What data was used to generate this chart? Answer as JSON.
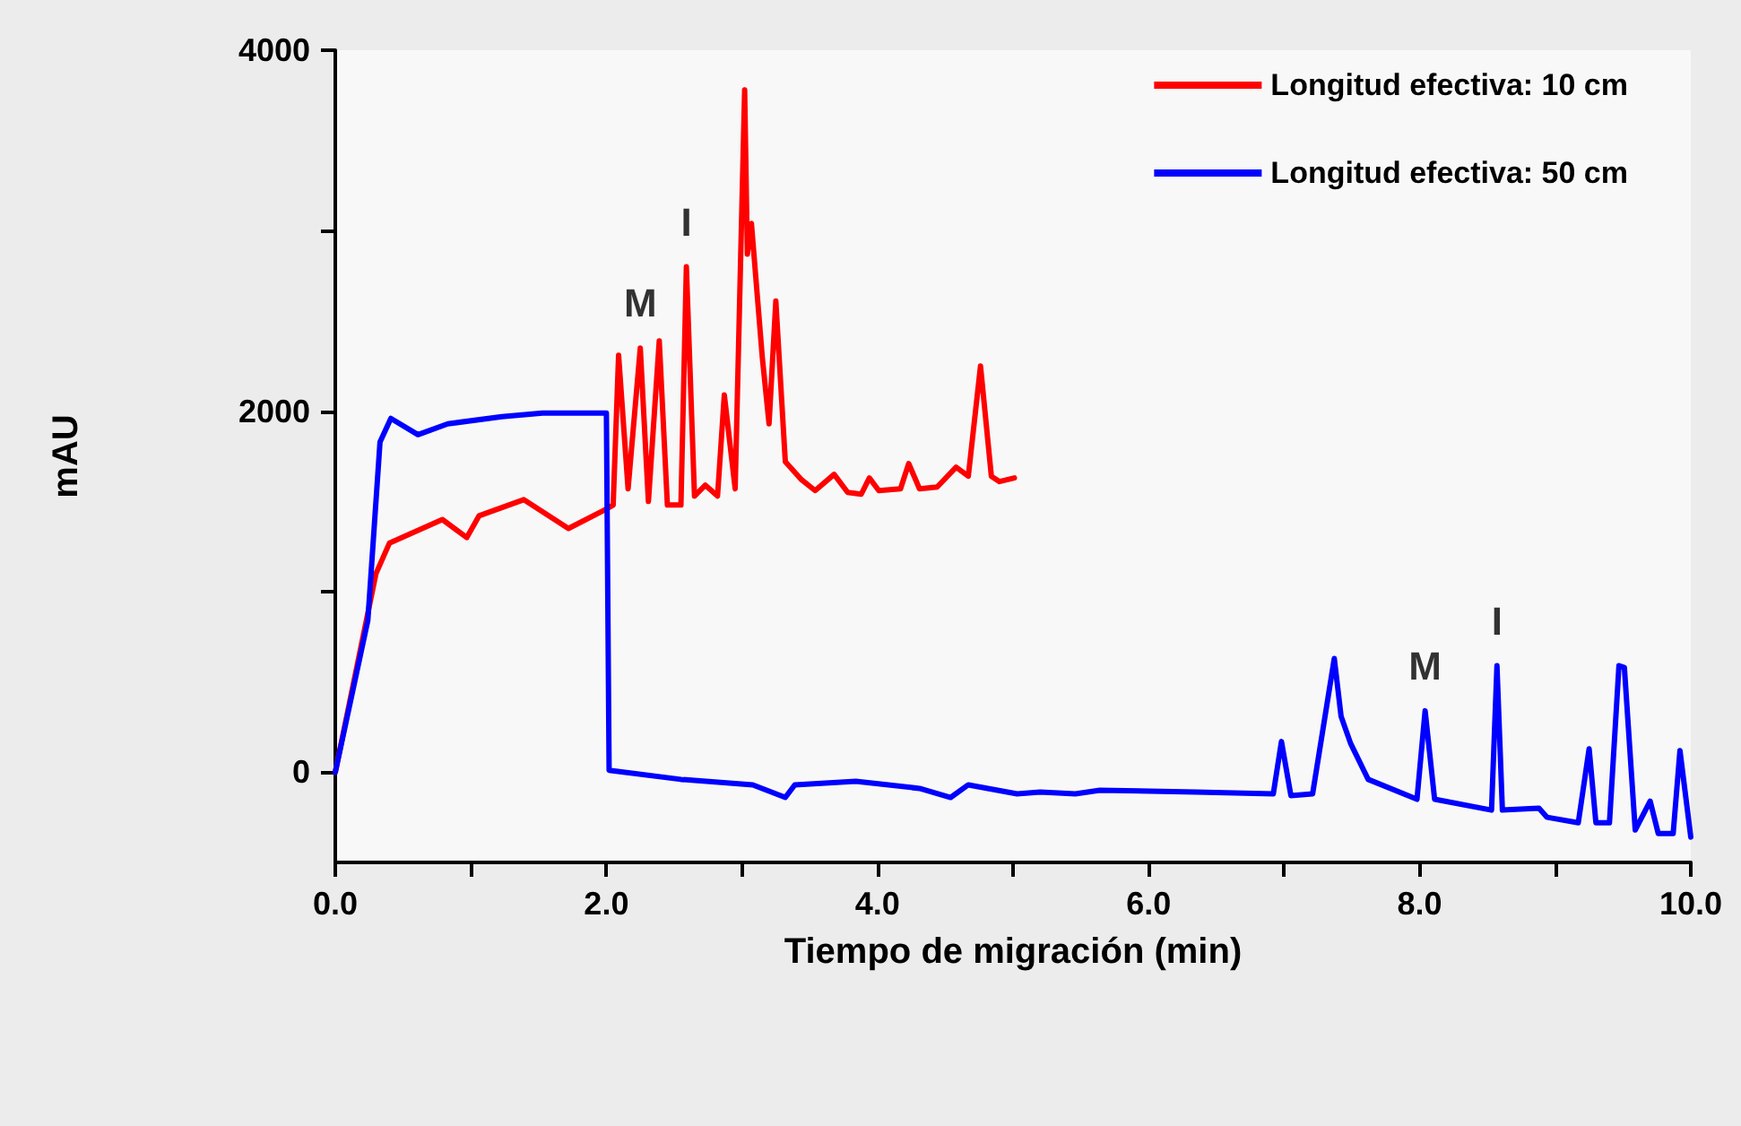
{
  "chart_data": {
    "type": "line",
    "xlabel": "Tiempo de migración (min)",
    "ylabel": "mAU",
    "xlim": [
      0,
      10
    ],
    "ylim": [
      -500,
      4000
    ],
    "xticks": [
      {
        "value": 0,
        "label": "0.0"
      },
      {
        "value": 1,
        "label": null
      },
      {
        "value": 2,
        "label": "2.0"
      },
      {
        "value": 3,
        "label": null
      },
      {
        "value": 4,
        "label": "4.0"
      },
      {
        "value": 5,
        "label": null
      },
      {
        "value": 6,
        "label": "6.0"
      },
      {
        "value": 7,
        "label": null
      },
      {
        "value": 8,
        "label": "8.0"
      },
      {
        "value": 9,
        "label": null
      },
      {
        "value": 10,
        "label": "10.0"
      }
    ],
    "yticks": [
      0,
      {
        "value": 1000,
        "label": null
      },
      2000,
      {
        "value": 3000,
        "label": null
      },
      4000
    ],
    "grid": false,
    "legend": "top right",
    "marker": "none",
    "line_style": "solid",
    "series": [
      {
        "name": "Longitud efectiva: 10 cm",
        "color": "#ff0000",
        "x": [
          0,
          0.3,
          0.4,
          0.79,
          0.97,
          1.06,
          1.39,
          1.72,
          1.98,
          2.05,
          2.09,
          2.16,
          2.25,
          2.31,
          2.39,
          2.45,
          2.55,
          2.59,
          2.65,
          2.73,
          2.82,
          2.87,
          2.95,
          3.02,
          3.04,
          3.07,
          3.15,
          3.2,
          3.25,
          3.32,
          3.44,
          3.54,
          3.68,
          3.78,
          3.88,
          3.94,
          4.01,
          4.17,
          4.23,
          4.31,
          4.44,
          4.58,
          4.67,
          4.76,
          4.84,
          4.9,
          5.01
        ],
        "values": [
          0,
          1100,
          1270,
          1400,
          1300,
          1420,
          1510,
          1350,
          1450,
          1480,
          2310,
          1570,
          2350,
          1500,
          2390,
          1480,
          1480,
          2800,
          1530,
          1590,
          1530,
          2090,
          1570,
          3780,
          2870,
          3040,
          2300,
          1930,
          2610,
          1720,
          1620,
          1560,
          1650,
          1550,
          1540,
          1630,
          1560,
          1570,
          1710,
          1570,
          1580,
          1690,
          1640,
          2250,
          1640,
          1610,
          1630
        ]
      },
      {
        "name": "Longitud efectiva: 50 cm",
        "color": "#0000ff",
        "x": [
          0,
          0.24,
          0.33,
          0.41,
          0.61,
          0.83,
          1.23,
          1.53,
          2.0,
          2.02,
          2.55,
          3.08,
          3.32,
          3.39,
          3.84,
          4.31,
          4.54,
          4.67,
          5.03,
          5.2,
          5.46,
          5.64,
          6.35,
          6.92,
          6.98,
          7.05,
          7.21,
          7.37,
          7.42,
          7.49,
          7.62,
          7.98,
          8.04,
          8.11,
          8.53,
          8.57,
          8.61,
          8.88,
          8.94,
          9.17,
          9.25,
          9.3,
          9.4,
          9.47,
          9.51,
          9.59,
          9.7,
          9.76,
          9.87,
          9.92,
          10.0
        ],
        "values": [
          0,
          840,
          1830,
          1960,
          1870,
          1930,
          1970,
          1990,
          1990,
          10,
          -40,
          -70,
          -140,
          -70,
          -50,
          -90,
          -140,
          -70,
          -120,
          -110,
          -120,
          -100,
          -110,
          -120,
          170,
          -130,
          -120,
          630,
          310,
          160,
          -40,
          -150,
          340,
          -150,
          -210,
          590,
          -210,
          -200,
          -250,
          -280,
          130,
          -280,
          -280,
          590,
          580,
          -320,
          -160,
          -340,
          -340,
          120,
          -360
        ]
      }
    ],
    "annotations": [
      {
        "text": "M",
        "x": 2.25,
        "y": 2350
      },
      {
        "text": "I",
        "x": 2.59,
        "y": 2800
      },
      {
        "text": "M",
        "x": 8.04,
        "y": 340
      },
      {
        "text": "I",
        "x": 8.57,
        "y": 590
      }
    ]
  }
}
